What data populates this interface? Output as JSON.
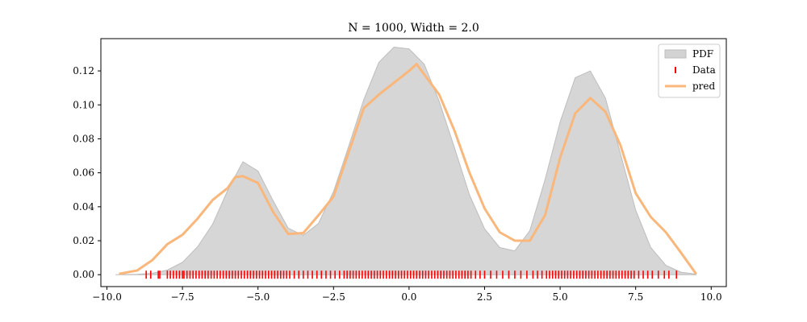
{
  "chart_data": {
    "type": "area",
    "title": "N = 1000, Width = 2.0",
    "xlabel": "",
    "ylabel": "",
    "xlim": [
      -10.2,
      10.5
    ],
    "ylim": [
      -0.007,
      0.139
    ],
    "x_ticks": [
      -10.0,
      -7.5,
      -5.0,
      -2.5,
      0.0,
      2.5,
      5.0,
      7.5,
      10.0
    ],
    "x_tick_labels": [
      "−10.0",
      "−7.5",
      "−5.0",
      "−2.5",
      "0.0",
      "2.5",
      "5.0",
      "7.5",
      "10.0"
    ],
    "y_ticks": [
      0.0,
      0.02,
      0.04,
      0.06,
      0.08,
      0.1,
      0.12
    ],
    "y_tick_labels": [
      "0.00",
      "0.02",
      "0.04",
      "0.06",
      "0.08",
      "0.10",
      "0.12"
    ],
    "grid": false,
    "legend": {
      "placement": "top-right",
      "entries": [
        {
          "label": "PDF",
          "kind": "patch",
          "color": "#d3d3d3"
        },
        {
          "label": "Data",
          "kind": "tick",
          "color": "#ff0000"
        },
        {
          "label": "pred",
          "kind": "line",
          "color": "#f9b77b"
        }
      ]
    },
    "series": [
      {
        "name": "PDF",
        "kind": "area",
        "color": "#d6d6d6",
        "x": [
          -9.7,
          -9.0,
          -8.5,
          -8.0,
          -7.5,
          -7.0,
          -6.5,
          -6.0,
          -5.5,
          -5.0,
          -4.5,
          -4.0,
          -3.5,
          -3.0,
          -2.5,
          -2.0,
          -1.5,
          -1.0,
          -0.5,
          0.0,
          0.5,
          1.0,
          1.5,
          2.0,
          2.5,
          3.0,
          3.5,
          4.0,
          4.5,
          5.0,
          5.5,
          6.0,
          6.5,
          7.0,
          7.5,
          8.0,
          8.5,
          9.0,
          9.5
        ],
        "y": [
          0.0,
          0.0002,
          0.0008,
          0.0027,
          0.0073,
          0.0164,
          0.0298,
          0.0497,
          0.0665,
          0.061,
          0.0436,
          0.0274,
          0.0232,
          0.0301,
          0.049,
          0.0755,
          0.103,
          0.125,
          0.134,
          0.133,
          0.124,
          0.102,
          0.075,
          0.047,
          0.027,
          0.016,
          0.014,
          0.026,
          0.056,
          0.09,
          0.116,
          0.12,
          0.104,
          0.071,
          0.038,
          0.016,
          0.0055,
          0.0015,
          0.0003
        ]
      },
      {
        "name": "pred",
        "kind": "line",
        "color": "#f9b77b",
        "x": [
          -9.6,
          -9.0,
          -8.5,
          -8.0,
          -7.5,
          -7.0,
          -6.5,
          -6.0,
          -5.75,
          -5.5,
          -5.0,
          -4.5,
          -4.0,
          -3.5,
          -3.0,
          -2.5,
          -2.0,
          -1.5,
          -1.0,
          -0.5,
          0.0,
          0.25,
          0.5,
          1.0,
          1.5,
          2.0,
          2.5,
          3.0,
          3.5,
          4.0,
          4.5,
          5.0,
          5.5,
          6.0,
          6.5,
          7.0,
          7.5,
          8.0,
          8.5,
          9.0,
          9.5
        ],
        "y": [
          0.0005,
          0.0025,
          0.0085,
          0.018,
          0.0235,
          0.033,
          0.044,
          0.051,
          0.0575,
          0.058,
          0.054,
          0.037,
          0.024,
          0.0245,
          0.035,
          0.046,
          0.072,
          0.098,
          0.106,
          0.113,
          0.12,
          0.124,
          0.118,
          0.106,
          0.085,
          0.06,
          0.039,
          0.025,
          0.02,
          0.02,
          0.035,
          0.069,
          0.095,
          0.104,
          0.096,
          0.076,
          0.048,
          0.034,
          0.025,
          0.013,
          0.0005
        ]
      },
      {
        "name": "Data",
        "kind": "rug",
        "color": "#ff0000",
        "x": [
          -8.7,
          -8.55,
          -8.3,
          -8.25,
          -8.0,
          -7.9,
          -7.8,
          -7.7,
          -7.6,
          -7.5,
          -7.45,
          -7.35,
          -7.25,
          -7.15,
          -7.05,
          -6.95,
          -6.85,
          -6.75,
          -6.65,
          -6.55,
          -6.45,
          -6.35,
          -6.25,
          -6.15,
          -6.05,
          -5.95,
          -5.85,
          -5.75,
          -5.65,
          -5.55,
          -5.45,
          -5.35,
          -5.25,
          -5.15,
          -5.05,
          -4.95,
          -4.85,
          -4.75,
          -4.65,
          -4.55,
          -4.45,
          -4.35,
          -4.25,
          -4.15,
          -4.05,
          -3.95,
          -3.8,
          -3.65,
          -3.5,
          -3.35,
          -3.2,
          -3.05,
          -2.9,
          -2.75,
          -2.6,
          -2.45,
          -2.3,
          -2.15,
          -2.05,
          -1.95,
          -1.85,
          -1.75,
          -1.65,
          -1.55,
          -1.45,
          -1.35,
          -1.25,
          -1.15,
          -1.05,
          -0.95,
          -0.85,
          -0.75,
          -0.65,
          -0.55,
          -0.45,
          -0.35,
          -0.25,
          -0.15,
          -0.05,
          0.05,
          0.15,
          0.25,
          0.35,
          0.45,
          0.55,
          0.65,
          0.75,
          0.85,
          0.95,
          1.05,
          1.15,
          1.25,
          1.35,
          1.45,
          1.55,
          1.65,
          1.75,
          1.85,
          1.95,
          2.05,
          2.2,
          2.35,
          2.5,
          2.7,
          2.9,
          3.1,
          3.3,
          3.5,
          3.7,
          3.9,
          4.1,
          4.25,
          4.4,
          4.55,
          4.65,
          4.75,
          4.85,
          4.95,
          5.05,
          5.15,
          5.25,
          5.35,
          5.45,
          5.55,
          5.65,
          5.75,
          5.85,
          5.95,
          6.05,
          6.15,
          6.25,
          6.35,
          6.45,
          6.55,
          6.65,
          6.75,
          6.85,
          6.95,
          7.05,
          7.15,
          7.25,
          7.35,
          7.45,
          7.6,
          7.75,
          7.9,
          8.05,
          8.25,
          8.45,
          8.6,
          8.85
        ]
      }
    ]
  }
}
